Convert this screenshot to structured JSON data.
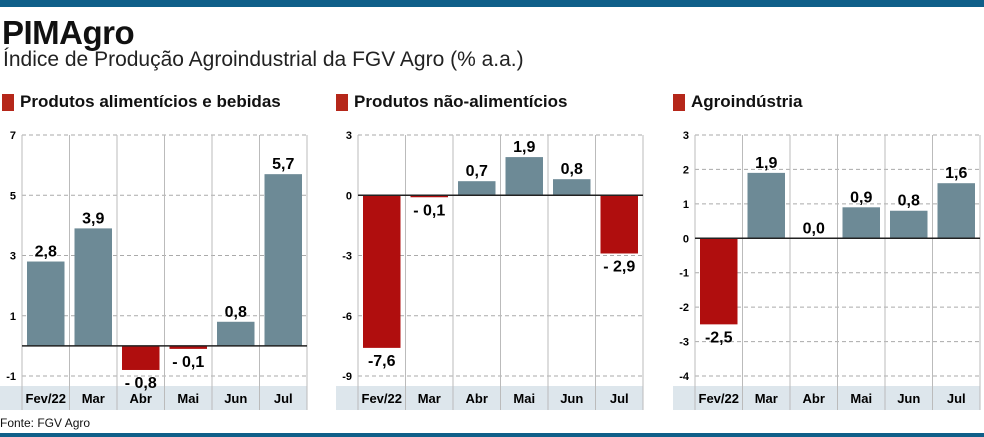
{
  "header": {
    "title": "PIMAgro",
    "subtitle": "Índice de Produção Agroindustrial da FGV Agro (% a.a.)"
  },
  "source": "Fonte: FGV Agro",
  "colors": {
    "positive": "#6d8a96",
    "negative": "#b00e0e",
    "accent": "#0f5f89",
    "category_bg": "#dde6ec"
  },
  "chart_data": [
    {
      "type": "bar",
      "title": "Produtos alimentícios e bebidas",
      "categories": [
        "Fev/22",
        "Mar",
        "Abr",
        "Mai",
        "Jun",
        "Jul"
      ],
      "values": [
        2.8,
        3.9,
        -0.8,
        -0.1,
        0.8,
        5.7
      ],
      "labels": [
        "2,8",
        "3,9",
        "- 0,8",
        "- 0,1",
        "0,8",
        "5,7"
      ],
      "ylim": [
        -1,
        7
      ],
      "yticks": [
        7,
        5,
        3,
        1,
        -1
      ]
    },
    {
      "type": "bar",
      "title": "Produtos não-alimentícios",
      "categories": [
        "Fev/22",
        "Mar",
        "Abr",
        "Mai",
        "Jun",
        "Jul"
      ],
      "values": [
        -7.6,
        -0.1,
        0.7,
        1.9,
        0.8,
        -2.9
      ],
      "labels": [
        "-7,6",
        "- 0,1",
        "0,7",
        "1,9",
        "0,8",
        "- 2,9"
      ],
      "ylim": [
        -9,
        3
      ],
      "yticks": [
        3,
        0,
        -3,
        -6,
        -9
      ]
    },
    {
      "type": "bar",
      "title": "Agroindústria",
      "categories": [
        "Fev/22",
        "Mar",
        "Abr",
        "Mai",
        "Jun",
        "Jul"
      ],
      "values": [
        -2.5,
        1.9,
        0.0,
        0.9,
        0.8,
        1.6
      ],
      "labels": [
        "-2,5",
        "1,9",
        "0,0",
        "0,9",
        "0,8",
        "1,6"
      ],
      "ylim": [
        -4,
        3
      ],
      "yticks": [
        3,
        2,
        1,
        0,
        -1,
        -2,
        -3,
        -4
      ]
    }
  ]
}
